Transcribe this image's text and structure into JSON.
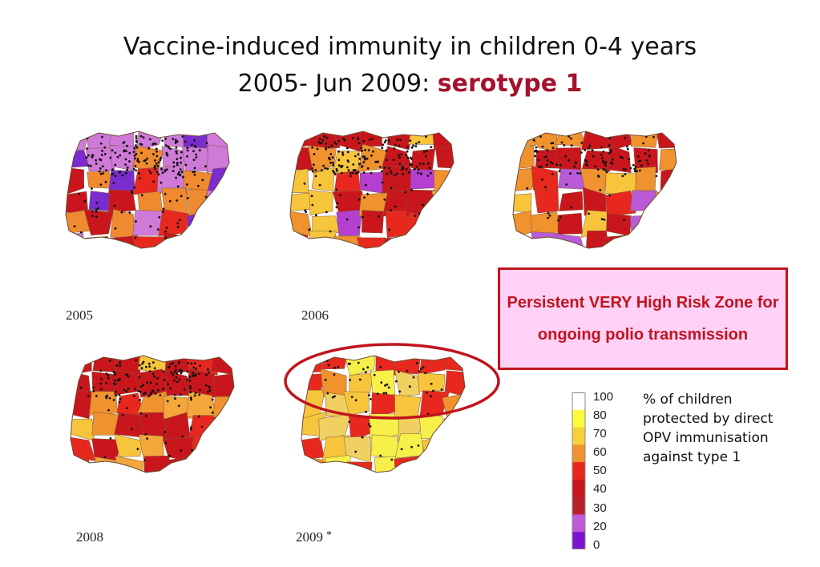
{
  "title": {
    "line1": "Vaccine-induced immunity in children 0-4 years",
    "line2_prefix": "2005- Jun 2009:",
    "line2_accent": "serotype 1"
  },
  "maps": [
    {
      "year": "2005",
      "palette": [
        "#e8281e",
        "#c8161c",
        "#cf7ad8",
        "#7a2ccf",
        "#f08a30"
      ],
      "mark": ""
    },
    {
      "year": "2006",
      "palette": [
        "#f0922e",
        "#e8281e",
        "#c8161c",
        "#b53fd1",
        "#f7c53c"
      ],
      "mark": ""
    },
    {
      "year": "",
      "palette": [
        "#e8281e",
        "#f0922e",
        "#c8161c",
        "#f7c53c",
        "#b95bd8"
      ],
      "mark": ""
    },
    {
      "year": "2008",
      "palette": [
        "#f0922e",
        "#f7c53c",
        "#e8281e",
        "#c8161c",
        "#f4a73a"
      ],
      "mark": ""
    },
    {
      "year": "2009",
      "palette": [
        "#f7c53c",
        "#f0d060",
        "#f0922e",
        "#e8281e",
        "#f7f04a"
      ],
      "mark": "*"
    }
  ],
  "callout": {
    "text": "Persistent VERY High Risk Zone for ongoing polio transmission",
    "border_color": "#c0141d",
    "fill_color": "#ffd1f7"
  },
  "legend": {
    "ticks": [
      "100",
      "80",
      "70",
      "60",
      "50",
      "40",
      "30",
      "20",
      "0"
    ],
    "colors": [
      "#ffffff",
      "#fbfb3c",
      "#f5d23c",
      "#f0922e",
      "#e8281e",
      "#c8161c",
      "#b8212a",
      "#c05ad8",
      "#7a14cf"
    ],
    "caption": "% of children protected by direct OPV immunisation against type 1"
  }
}
